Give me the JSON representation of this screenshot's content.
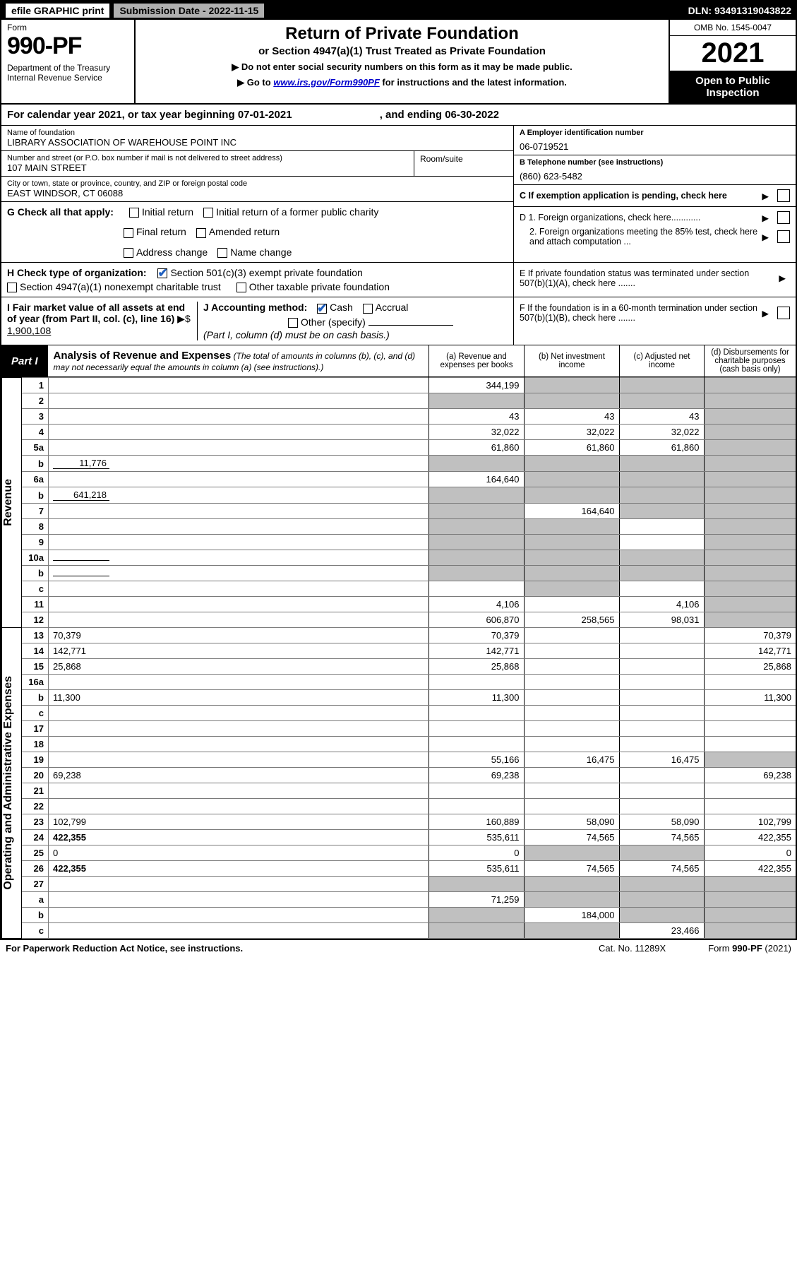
{
  "topbar": {
    "efile": "efile GRAPHIC print",
    "subdate": "Submission Date - 2022-11-15",
    "dln": "DLN: 93491319043822"
  },
  "header": {
    "formword": "Form",
    "formnum": "990-PF",
    "dept": "Department of the Treasury\nInternal Revenue Service",
    "title": "Return of Private Foundation",
    "subtitle": "or Section 4947(a)(1) Trust Treated as Private Foundation",
    "note1": "▶ Do not enter social security numbers on this form as it may be made public.",
    "note2_pre": "▶ Go to ",
    "note2_link": "www.irs.gov/Form990PF",
    "note2_post": " for instructions and the latest information.",
    "omb": "OMB No. 1545-0047",
    "year": "2021",
    "open": "Open to Public\nInspection"
  },
  "calyear": {
    "pre": "For calendar year 2021, or tax year beginning ",
    "begin": "07-01-2021",
    "mid": " , and ending ",
    "end": "06-30-2022"
  },
  "foundation": {
    "name_lbl": "Name of foundation",
    "name": "LIBRARY ASSOCIATION OF WAREHOUSE POINT INC",
    "addr_lbl": "Number and street (or P.O. box number if mail is not delivered to street address)",
    "addr": "107 MAIN STREET",
    "room_lbl": "Room/suite",
    "city_lbl": "City or town, state or province, country, and ZIP or foreign postal code",
    "city": "EAST WINDSOR, CT  06088"
  },
  "right": {
    "a_lbl": "A Employer identification number",
    "a_val": "06-0719521",
    "b_lbl": "B Telephone number (see instructions)",
    "b_val": "(860) 623-5482",
    "c_lbl": "C If exemption application is pending, check here",
    "d1": "D 1. Foreign organizations, check here............",
    "d2": "2. Foreign organizations meeting the 85% test, check here and attach computation ...",
    "e": "E  If private foundation status was terminated under section 507(b)(1)(A), check here .......",
    "f": "F  If the foundation is in a 60-month termination under section 507(b)(1)(B), check here ......."
  },
  "g": {
    "lbl": "G Check all that apply:",
    "o1": "Initial return",
    "o2": "Initial return of a former public charity",
    "o3": "Final return",
    "o4": "Amended return",
    "o5": "Address change",
    "o6": "Name change"
  },
  "h": {
    "lbl": "H Check type of organization:",
    "o1": "Section 501(c)(3) exempt private foundation",
    "o2": "Section 4947(a)(1) nonexempt charitable trust",
    "o3": "Other taxable private foundation"
  },
  "i": {
    "lbl": "I Fair market value of all assets at end of year (from Part II, col. (c), line 16) ",
    "pre": "▶$ ",
    "val": "1,900,108"
  },
  "j": {
    "lbl": "J Accounting method:",
    "o1": "Cash",
    "o2": "Accrual",
    "o3": "Other (specify)",
    "note": "(Part I, column (d) must be on cash basis.)"
  },
  "part1": {
    "lbl": "Part I",
    "title": "Analysis of Revenue and Expenses",
    "sub": " (The total of amounts in columns (b), (c), and (d) may not necessarily equal the amounts in column (a) (see instructions).)",
    "cols": {
      "a": "(a)  Revenue and expenses per books",
      "b": "(b)  Net investment income",
      "c": "(c)  Adjusted net income",
      "d": "(d)  Disbursements for charitable purposes (cash basis only)"
    }
  },
  "sections": {
    "rev": "Revenue",
    "exp": "Operating and Administrative Expenses"
  },
  "lines": {
    "1": {
      "n": "1",
      "d": "",
      "a": "344,199",
      "b": "",
      "c": "",
      "gb": true,
      "gc": true,
      "gd": true
    },
    "2": {
      "n": "2",
      "d": "",
      "a": "",
      "b": "",
      "c": "",
      "ga": true,
      "gb": true,
      "gc": true,
      "gd": true,
      "bold_not": true
    },
    "3": {
      "n": "3",
      "d": "",
      "a": "43",
      "b": "43",
      "c": "43",
      "gd": true
    },
    "4": {
      "n": "4",
      "d": "",
      "a": "32,022",
      "b": "32,022",
      "c": "32,022",
      "gd": true
    },
    "5a": {
      "n": "5a",
      "d": "",
      "a": "61,860",
      "b": "61,860",
      "c": "61,860",
      "gd": true
    },
    "5b": {
      "n": "b",
      "d": "",
      "inline": "11,776",
      "a": "",
      "b": "",
      "c": "",
      "ga": true,
      "gb": true,
      "gc": true,
      "gd": true
    },
    "6a": {
      "n": "6a",
      "d": "",
      "a": "164,640",
      "b": "",
      "c": "",
      "gb": true,
      "gc": true,
      "gd": true
    },
    "6b": {
      "n": "b",
      "d": "",
      "inline": "641,218",
      "a": "",
      "b": "",
      "c": "",
      "ga": true,
      "gb": true,
      "gc": true,
      "gd": true
    },
    "7": {
      "n": "7",
      "d": "",
      "a": "",
      "b": "164,640",
      "c": "",
      "ga": true,
      "gc": true,
      "gd": true
    },
    "8": {
      "n": "8",
      "d": "",
      "a": "",
      "b": "",
      "c": "",
      "ga": true,
      "gb": true,
      "gd": true
    },
    "9": {
      "n": "9",
      "d": "",
      "a": "",
      "b": "",
      "c": "",
      "ga": true,
      "gb": true,
      "gd": true
    },
    "10a": {
      "n": "10a",
      "d": "",
      "inline": "",
      "a": "",
      "b": "",
      "c": "",
      "ga": true,
      "gb": true,
      "gc": true,
      "gd": true
    },
    "10b": {
      "n": "b",
      "d": "",
      "inline": "",
      "a": "",
      "b": "",
      "c": "",
      "ga": true,
      "gb": true,
      "gc": true,
      "gd": true
    },
    "10c": {
      "n": "c",
      "d": "",
      "a": "",
      "b": "",
      "c": "",
      "gb": true,
      "gd": true
    },
    "11": {
      "n": "11",
      "d": "",
      "a": "4,106",
      "b": "",
      "c": "4,106",
      "gd": true
    },
    "12": {
      "n": "12",
      "d": "",
      "a": "606,870",
      "b": "258,565",
      "c": "98,031",
      "bold": true,
      "gd": true
    },
    "13": {
      "n": "13",
      "d": "70,379",
      "a": "70,379",
      "b": "",
      "c": ""
    },
    "14": {
      "n": "14",
      "d": "142,771",
      "a": "142,771",
      "b": "",
      "c": ""
    },
    "15": {
      "n": "15",
      "d": "25,868",
      "a": "25,868",
      "b": "",
      "c": ""
    },
    "16a": {
      "n": "16a",
      "d": "",
      "a": "",
      "b": "",
      "c": ""
    },
    "16b": {
      "n": "b",
      "d": "11,300",
      "a": "11,300",
      "b": "",
      "c": ""
    },
    "16c": {
      "n": "c",
      "d": "",
      "a": "",
      "b": "",
      "c": ""
    },
    "17": {
      "n": "17",
      "d": "",
      "a": "",
      "b": "",
      "c": ""
    },
    "18": {
      "n": "18",
      "d": "",
      "a": "",
      "b": "",
      "c": ""
    },
    "19": {
      "n": "19",
      "d": "",
      "a": "55,166",
      "b": "16,475",
      "c": "16,475",
      "gd": true
    },
    "20": {
      "n": "20",
      "d": "69,238",
      "a": "69,238",
      "b": "",
      "c": ""
    },
    "21": {
      "n": "21",
      "d": "",
      "a": "",
      "b": "",
      "c": ""
    },
    "22": {
      "n": "22",
      "d": "",
      "a": "",
      "b": "",
      "c": ""
    },
    "23": {
      "n": "23",
      "d": "102,799",
      "a": "160,889",
      "b": "58,090",
      "c": "58,090"
    },
    "24": {
      "n": "24",
      "d": "422,355",
      "a": "535,611",
      "b": "74,565",
      "c": "74,565",
      "bold": true
    },
    "25": {
      "n": "25",
      "d": "0",
      "a": "0",
      "b": "",
      "c": "",
      "gb": true,
      "gc": true
    },
    "26": {
      "n": "26",
      "d": "422,355",
      "a": "535,611",
      "b": "74,565",
      "c": "74,565",
      "bold": true
    },
    "27": {
      "n": "27",
      "d": "",
      "a": "",
      "b": "",
      "c": "",
      "ga": true,
      "gb": true,
      "gc": true,
      "gd": true,
      "bold": true
    },
    "27a": {
      "n": "a",
      "d": "",
      "a": "71,259",
      "b": "",
      "c": "",
      "bold": true,
      "gb": true,
      "gc": true,
      "gd": true
    },
    "27b": {
      "n": "b",
      "d": "",
      "a": "",
      "b": "184,000",
      "c": "",
      "bold": true,
      "ga": true,
      "gc": true,
      "gd": true
    },
    "27c": {
      "n": "c",
      "d": "",
      "a": "",
      "b": "",
      "c": "23,466",
      "bold": true,
      "ga": true,
      "gb": true,
      "gd": true
    }
  },
  "footer": {
    "left": "For Paperwork Reduction Act Notice, see instructions.",
    "mid": "Cat. No. 11289X",
    "right": "Form 990-PF (2021)"
  },
  "colors": {
    "grey": "#c0c0c0",
    "link": "#0000cc",
    "check": "#2060c0"
  }
}
